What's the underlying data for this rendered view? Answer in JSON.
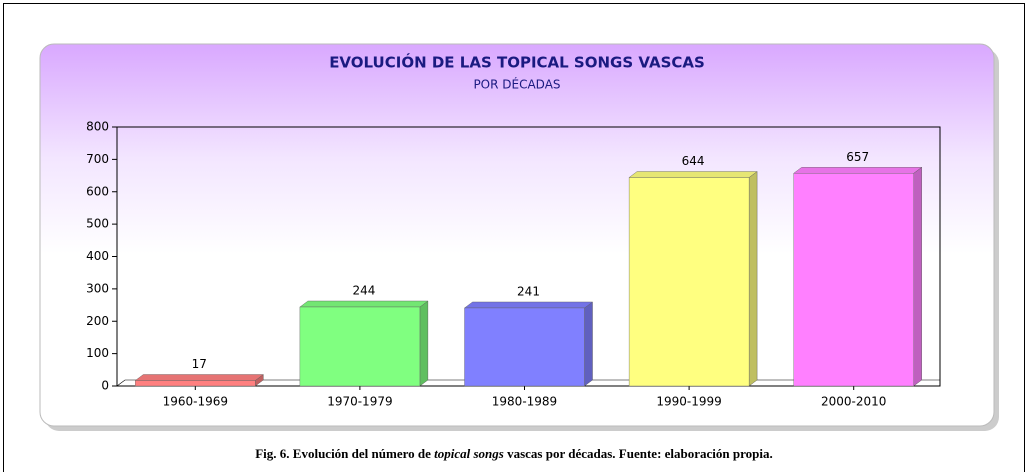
{
  "chart_data": {
    "type": "bar",
    "title": "EVOLUCIÓN DE LAS TOPICAL SONGS VASCAS",
    "subtitle": "POR DÉCADAS",
    "categories": [
      "1960-1969",
      "1970-1979",
      "1980-1989",
      "1990-1999",
      "2000-2010"
    ],
    "values": [
      17,
      244,
      241,
      644,
      657
    ],
    "colors": [
      "#ff8080",
      "#80ff80",
      "#8080ff",
      "#ffff80",
      "#ff80ff"
    ],
    "ylim": [
      0,
      800
    ],
    "yticks": [
      0,
      100,
      200,
      300,
      400,
      500,
      600,
      700,
      800
    ]
  },
  "caption": {
    "prefix": "Fig. 6. Evolución del número de ",
    "emphasis": "topical songs",
    "suffix": " vascas por décadas. Fuente: elaboración propia."
  }
}
